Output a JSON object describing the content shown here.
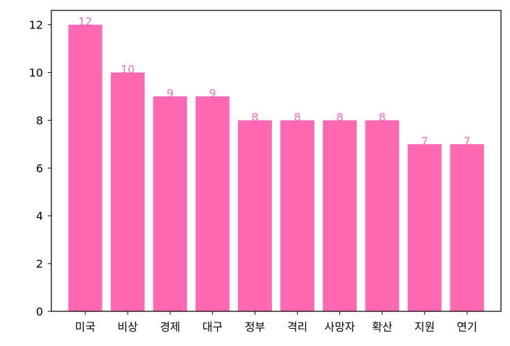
{
  "colors": {
    "bar": "#ff69b4",
    "label": "#ff69b4",
    "axis": "#000000",
    "background": "#ffffff"
  },
  "chart_data": {
    "type": "bar",
    "title": "",
    "xlabel": "",
    "ylabel": "",
    "categories": [
      "미국",
      "비상",
      "경제",
      "대구",
      "정부",
      "격리",
      "사망자",
      "확산",
      "지원",
      "연기"
    ],
    "values": [
      12,
      10,
      9,
      9,
      8,
      8,
      8,
      8,
      7,
      7
    ],
    "ylim": [
      0,
      12.6
    ],
    "yticks": [
      0,
      2,
      4,
      6,
      8,
      10,
      12
    ],
    "grid": false,
    "legend": "none",
    "data_labels": true
  }
}
